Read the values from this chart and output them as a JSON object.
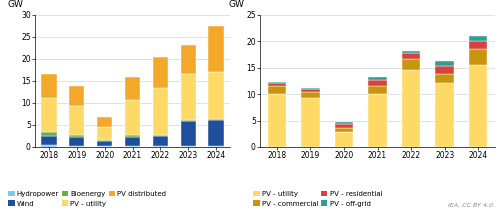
{
  "years": [
    2018,
    2019,
    2020,
    2021,
    2022,
    2023,
    2024
  ],
  "left_chart": {
    "title_unit": "GW",
    "ylim": [
      0,
      30
    ],
    "yticks": [
      0,
      5,
      10,
      15,
      20,
      25,
      30
    ],
    "series": {
      "Hydropower": [
        0.5,
        0.3,
        0.2,
        0.3,
        0.3,
        0.3,
        0.3
      ],
      "Wind": [
        2.0,
        2.0,
        1.2,
        2.0,
        2.2,
        5.5,
        5.8
      ],
      "Bioenergy": [
        1.0,
        0.5,
        0.3,
        0.4,
        0.3,
        0.3,
        0.3
      ],
      "PV - utility": [
        7.5,
        6.5,
        2.8,
        8.0,
        10.5,
        10.5,
        10.5
      ],
      "PV distributed": [
        5.5,
        4.5,
        2.2,
        5.2,
        7.0,
        6.5,
        10.5
      ]
    },
    "colors": {
      "Hydropower": "#7ec8e3",
      "Wind": "#1f4e9c",
      "Bioenergy": "#70ad47",
      "PV - utility": "#ffd966",
      "PV distributed": "#f4a82a"
    },
    "stack_order": [
      "Hydropower",
      "Wind",
      "Bioenergy",
      "PV - utility",
      "PV distributed"
    ],
    "legend_order": [
      "Hydropower",
      "Wind",
      "Bioenergy",
      "PV - utility",
      "PV distributed"
    ],
    "legend_ncol": 3,
    "legend_items": [
      [
        "Hydropower",
        "Wind",
        "Bioenergy"
      ],
      [
        "PV - utility",
        "PV distributed",
        ""
      ]
    ]
  },
  "right_chart": {
    "title_unit": "GW",
    "ylim": [
      0,
      25
    ],
    "yticks": [
      0,
      5,
      10,
      15,
      20,
      25
    ],
    "series": {
      "PV - utility": [
        10.0,
        9.2,
        2.8,
        10.0,
        14.5,
        12.0,
        15.5
      ],
      "PV - commercial": [
        1.5,
        1.2,
        0.8,
        1.5,
        2.2,
        1.8,
        3.0
      ],
      "PV - residential": [
        0.5,
        0.5,
        0.8,
        1.2,
        1.0,
        1.5,
        1.5
      ],
      "PV - off-grid": [
        0.3,
        0.3,
        0.3,
        0.5,
        0.5,
        1.0,
        1.0
      ]
    },
    "colors": {
      "PV - utility": "#ffd966",
      "PV - commercial": "#c8960c",
      "PV - residential": "#d94040",
      "PV - off-grid": "#2e9e8e"
    },
    "stack_order": [
      "PV - utility",
      "PV - commercial",
      "PV - residential",
      "PV - off-grid"
    ],
    "legend_order": [
      "PV - utility",
      "PV - commercial",
      "PV - residential",
      "PV - off-grid"
    ]
  },
  "iea_text": "IEA. CC BY 4.0.",
  "bar_width": 0.55
}
